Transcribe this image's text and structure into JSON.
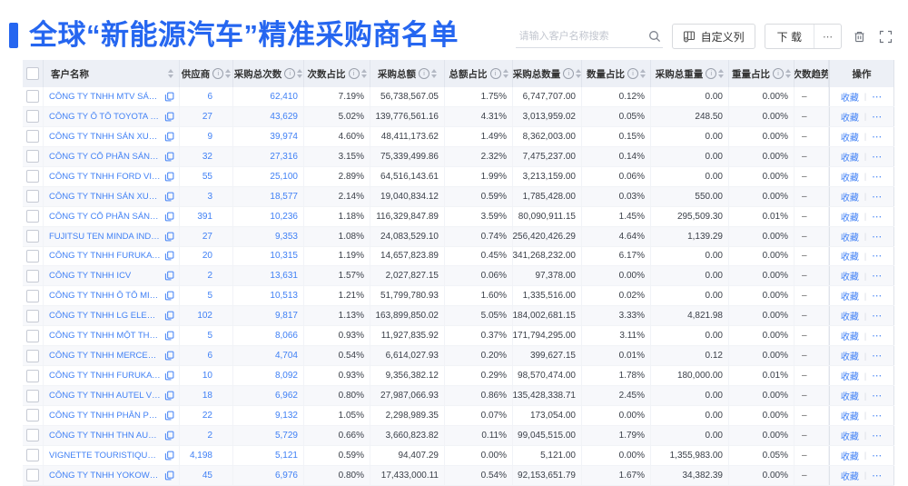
{
  "page": {
    "title": "全球“新能源汽车”精准采购商名单"
  },
  "toolbar": {
    "search_placeholder": "请输入客户名称搜索",
    "customize_columns": "自定义列",
    "download": "下 载",
    "more": "⋯"
  },
  "icons": {
    "info_glyph": "i"
  },
  "colors": {
    "primary": "#2566F0",
    "link": "#4080F5",
    "header_bg": "#edf0f6"
  },
  "table": {
    "columns": [
      {
        "key": "select",
        "type": "checkbox"
      },
      {
        "key": "name",
        "label": "客户名称",
        "info": false,
        "sort": true
      },
      {
        "key": "suppliers",
        "label": "供应商",
        "info": true,
        "sort": true,
        "accent": true
      },
      {
        "key": "purchase_count",
        "label": "采购总次数",
        "info": true,
        "sort": true,
        "accent": true
      },
      {
        "key": "count_pct",
        "label": "次数占比",
        "info": true,
        "sort": true
      },
      {
        "key": "amount",
        "label": "采购总额",
        "info": true,
        "sort": true
      },
      {
        "key": "amount_pct",
        "label": "总额占比",
        "info": true,
        "sort": true
      },
      {
        "key": "quantity",
        "label": "采购总数量",
        "info": true,
        "sort": true
      },
      {
        "key": "quantity_pct",
        "label": "数量占比",
        "info": true,
        "sort": true
      },
      {
        "key": "weight",
        "label": "采购总重量",
        "info": true,
        "sort": true
      },
      {
        "key": "weight_pct",
        "label": "重量占比",
        "info": true,
        "sort": true
      },
      {
        "key": "trend",
        "label": "次数趋势",
        "info": false,
        "sort": false
      },
      {
        "key": "actions",
        "label": "操作"
      }
    ],
    "actions": {
      "favorite": "收藏",
      "divider": "|",
      "more": "⋯"
    },
    "rows": [
      {
        "name": "CÔNG TY TNHH MTV SẢN XUẤ...",
        "suppliers": "6",
        "purchase_count": "62,410",
        "count_pct": "7.19%",
        "amount": "56,738,567.05",
        "amount_pct": "1.75%",
        "quantity": "6,747,707.00",
        "quantity_pct": "0.12%",
        "weight": "0.00",
        "weight_pct": "0.00%",
        "trend": "–"
      },
      {
        "name": "CÔNG TY Ô TÔ TOYOTA VIỆT ...",
        "suppliers": "27",
        "purchase_count": "43,629",
        "count_pct": "5.02%",
        "amount": "139,776,561.16",
        "amount_pct": "4.31%",
        "quantity": "3,013,959.02",
        "quantity_pct": "0.05%",
        "weight": "248.50",
        "weight_pct": "0.00%",
        "trend": "–"
      },
      {
        "name": "CÔNG TY TNHH SẢN XUẤT VÀ ...",
        "suppliers": "9",
        "purchase_count": "39,974",
        "count_pct": "4.60%",
        "amount": "48,411,173.62",
        "amount_pct": "1.49%",
        "quantity": "8,362,003.00",
        "quantity_pct": "0.15%",
        "weight": "0.00",
        "weight_pct": "0.00%",
        "trend": "–"
      },
      {
        "name": "CÔNG TY CỔ PHẦN SẢN XUẤT...",
        "suppliers": "32",
        "purchase_count": "27,316",
        "count_pct": "3.15%",
        "amount": "75,339,499.86",
        "amount_pct": "2.32%",
        "quantity": "7,475,237.00",
        "quantity_pct": "0.14%",
        "weight": "0.00",
        "weight_pct": "0.00%",
        "trend": "–"
      },
      {
        "name": "CÔNG TY TNHH FORD VIỆT NAM",
        "suppliers": "55",
        "purchase_count": "25,100",
        "count_pct": "2.89%",
        "amount": "64,516,143.61",
        "amount_pct": "1.99%",
        "quantity": "3,213,159.00",
        "quantity_pct": "0.06%",
        "weight": "0.00",
        "weight_pct": "0.00%",
        "trend": "–"
      },
      {
        "name": "CÔNG TY TNHH SẢN XUẤT VÀ ...",
        "suppliers": "3",
        "purchase_count": "18,577",
        "count_pct": "2.14%",
        "amount": "19,040,834.12",
        "amount_pct": "0.59%",
        "quantity": "1,785,428.00",
        "quantity_pct": "0.03%",
        "weight": "550.00",
        "weight_pct": "0.00%",
        "trend": "–"
      },
      {
        "name": "CÔNG TY CỔ PHẦN SẢN XUẤT...",
        "suppliers": "391",
        "purchase_count": "10,236",
        "count_pct": "1.18%",
        "amount": "116,329,847.89",
        "amount_pct": "3.59%",
        "quantity": "80,090,911.15",
        "quantity_pct": "1.45%",
        "weight": "295,509.30",
        "weight_pct": "0.01%",
        "trend": "–"
      },
      {
        "name": "FUJITSU TEN MINDA INDIA PVT...",
        "suppliers": "27",
        "purchase_count": "9,353",
        "count_pct": "1.08%",
        "amount": "24,083,529.10",
        "amount_pct": "0.74%",
        "quantity": "256,420,426.29",
        "quantity_pct": "4.64%",
        "weight": "1,139.29",
        "weight_pct": "0.00%",
        "trend": "–"
      },
      {
        "name": "CÔNG TY TNHH FURUKAWA A...",
        "suppliers": "20",
        "purchase_count": "10,315",
        "count_pct": "1.19%",
        "amount": "14,657,823.89",
        "amount_pct": "0.45%",
        "quantity": "341,268,232.00",
        "quantity_pct": "6.17%",
        "weight": "0.00",
        "weight_pct": "0.00%",
        "trend": "–"
      },
      {
        "name": "CÔNG TY TNHH ICV",
        "suppliers": "2",
        "purchase_count": "13,631",
        "count_pct": "1.57%",
        "amount": "2,027,827.15",
        "amount_pct": "0.06%",
        "quantity": "97,378.00",
        "quantity_pct": "0.00%",
        "weight": "0.00",
        "weight_pct": "0.00%",
        "trend": "–"
      },
      {
        "name": "CÔNG TY TNHH Ô TÔ MITSUBI...",
        "suppliers": "5",
        "purchase_count": "10,513",
        "count_pct": "1.21%",
        "amount": "51,799,780.93",
        "amount_pct": "1.60%",
        "quantity": "1,335,516.00",
        "quantity_pct": "0.02%",
        "weight": "0.00",
        "weight_pct": "0.00%",
        "trend": "–"
      },
      {
        "name": "CÔNG TY TNHH LG ELECTRON...",
        "suppliers": "102",
        "purchase_count": "9,817",
        "count_pct": "1.13%",
        "amount": "163,899,850.02",
        "amount_pct": "5.05%",
        "quantity": "184,002,681.15",
        "quantity_pct": "3.33%",
        "weight": "4,821.98",
        "weight_pct": "0.00%",
        "trend": "–"
      },
      {
        "name": "CÔNG TY TNHH MỘT THÀNH V...",
        "suppliers": "5",
        "purchase_count": "8,066",
        "count_pct": "0.93%",
        "amount": "11,927,835.92",
        "amount_pct": "0.37%",
        "quantity": "171,794,295.00",
        "quantity_pct": "3.11%",
        "weight": "0.00",
        "weight_pct": "0.00%",
        "trend": "–"
      },
      {
        "name": "CÔNG TY TNHH MERCEDES–B...",
        "suppliers": "6",
        "purchase_count": "4,704",
        "count_pct": "0.54%",
        "amount": "6,614,027.93",
        "amount_pct": "0.20%",
        "quantity": "399,627.15",
        "quantity_pct": "0.01%",
        "weight": "0.12",
        "weight_pct": "0.00%",
        "trend": "–"
      },
      {
        "name": "CÔNG TY TNHH FURUKAWA A...",
        "suppliers": "10",
        "purchase_count": "8,092",
        "count_pct": "0.93%",
        "amount": "9,356,382.12",
        "amount_pct": "0.29%",
        "quantity": "98,570,474.00",
        "quantity_pct": "1.78%",
        "weight": "180,000.00",
        "weight_pct": "0.01%",
        "trend": "–"
      },
      {
        "name": "CÔNG TY TNHH AUTEL VIỆT N...",
        "suppliers": "18",
        "purchase_count": "6,962",
        "count_pct": "0.80%",
        "amount": "27,987,066.93",
        "amount_pct": "0.86%",
        "quantity": "135,428,338.71",
        "quantity_pct": "2.45%",
        "weight": "0.00",
        "weight_pct": "0.00%",
        "trend": "–"
      },
      {
        "name": "CÔNG TY TNHH PHÂN PHỐI T...",
        "suppliers": "22",
        "purchase_count": "9,132",
        "count_pct": "1.05%",
        "amount": "2,298,989.35",
        "amount_pct": "0.07%",
        "quantity": "173,054.00",
        "quantity_pct": "0.00%",
        "weight": "0.00",
        "weight_pct": "0.00%",
        "trend": "–"
      },
      {
        "name": "CÔNG TY TNHH THN AUTOPAR...",
        "suppliers": "2",
        "purchase_count": "5,729",
        "count_pct": "0.66%",
        "amount": "3,660,823.82",
        "amount_pct": "0.11%",
        "quantity": "99,045,515.00",
        "quantity_pct": "1.79%",
        "weight": "0.00",
        "weight_pct": "0.00%",
        "trend": "–"
      },
      {
        "name": "VIGNETTE TOURISTIQUE G UNI...",
        "suppliers": "4,198",
        "purchase_count": "5,121",
        "count_pct": "0.59%",
        "amount": "94,407.29",
        "amount_pct": "0.00%",
        "quantity": "5,121.00",
        "quantity_pct": "0.00%",
        "weight": "1,355,983.00",
        "weight_pct": "0.05%",
        "trend": "–"
      },
      {
        "name": "CÔNG TY TNHH YOKOWO VIỆT...",
        "suppliers": "45",
        "purchase_count": "6,976",
        "count_pct": "0.80%",
        "amount": "17,433,000.11",
        "amount_pct": "0.54%",
        "quantity": "92,153,651.79",
        "quantity_pct": "1.67%",
        "weight": "34,382.39",
        "weight_pct": "0.00%",
        "trend": "–"
      }
    ]
  }
}
